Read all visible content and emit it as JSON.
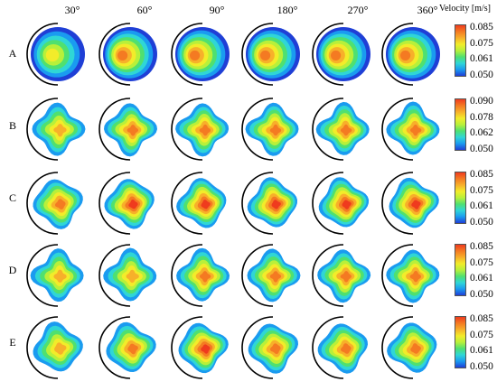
{
  "colorbar_title": "Velocity [m/s]",
  "columns": [
    "30°",
    "60°",
    "90°",
    "180°",
    "270°",
    "360°"
  ],
  "rows": [
    {
      "label": "A",
      "ticks": [
        "0.085",
        "0.075",
        "0.061",
        "0.050"
      ],
      "shape": "circle",
      "levels": [
        2,
        4,
        4,
        4,
        4,
        4
      ]
    },
    {
      "label": "B",
      "ticks": [
        "0.090",
        "0.078",
        "0.062",
        "0.050"
      ],
      "shape": "diamond",
      "levels": [
        2,
        3,
        3,
        3,
        3,
        3
      ]
    },
    {
      "label": "C",
      "ticks": [
        "0.085",
        "0.075",
        "0.061",
        "0.050"
      ],
      "shape": "square",
      "levels": [
        3,
        4,
        4,
        4,
        4,
        4
      ]
    },
    {
      "label": "D",
      "ticks": [
        "0.085",
        "0.075",
        "0.061",
        "0.050"
      ],
      "shape": "diamond",
      "levels": [
        2,
        2,
        3,
        3,
        3,
        3
      ]
    },
    {
      "label": "E",
      "ticks": [
        "0.085",
        "0.075",
        "0.061",
        "0.050"
      ],
      "shape": "square",
      "levels": [
        2,
        3,
        4,
        3,
        3,
        3
      ]
    }
  ],
  "palette": [
    "#1f3fd6",
    "#1a9bf0",
    "#2fd6d6",
    "#4fe070",
    "#b8f03a",
    "#f2ec2a",
    "#f7b02a",
    "#f47a22",
    "#ef3b1e"
  ]
}
